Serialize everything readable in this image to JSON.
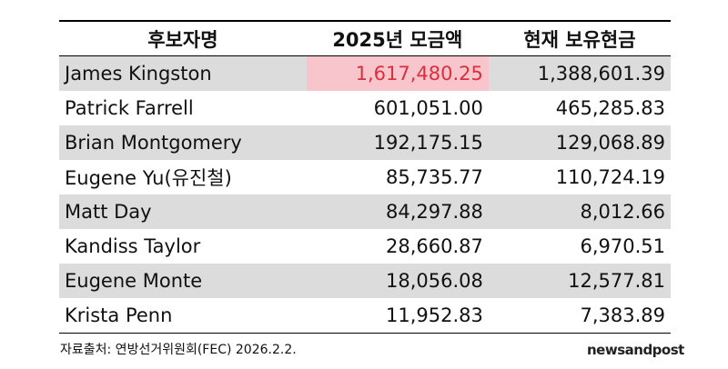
{
  "table": {
    "header": [
      "후보자명",
      "2025년 모금액",
      "현재 보유현금"
    ],
    "rows": [
      [
        "James Kingston",
        "1,617,480.25",
        "1,388,601.39"
      ],
      [
        "Patrick Farrell",
        "601,051.00",
        "465,285.83"
      ],
      [
        "Brian Montgomery",
        "192,175.15",
        "129,068.89"
      ],
      [
        "Eugene Yu(유진철)",
        "85,735.77",
        "110,724.19"
      ],
      [
        "Matt Day",
        "84,297.88",
        "8,012.66"
      ],
      [
        "Kandiss Taylor",
        "28,660.87",
        "6,970.51"
      ],
      [
        "Eugene Monte",
        "18,056.08",
        "12,577.81"
      ],
      [
        "Krista Penn",
        "11,952.83",
        "7,383.89"
      ]
    ]
  },
  "footer": {
    "source": "자료출처: 연방선거위원회(FEC) 2026.2.2.",
    "logo": "newsandpost"
  }
}
